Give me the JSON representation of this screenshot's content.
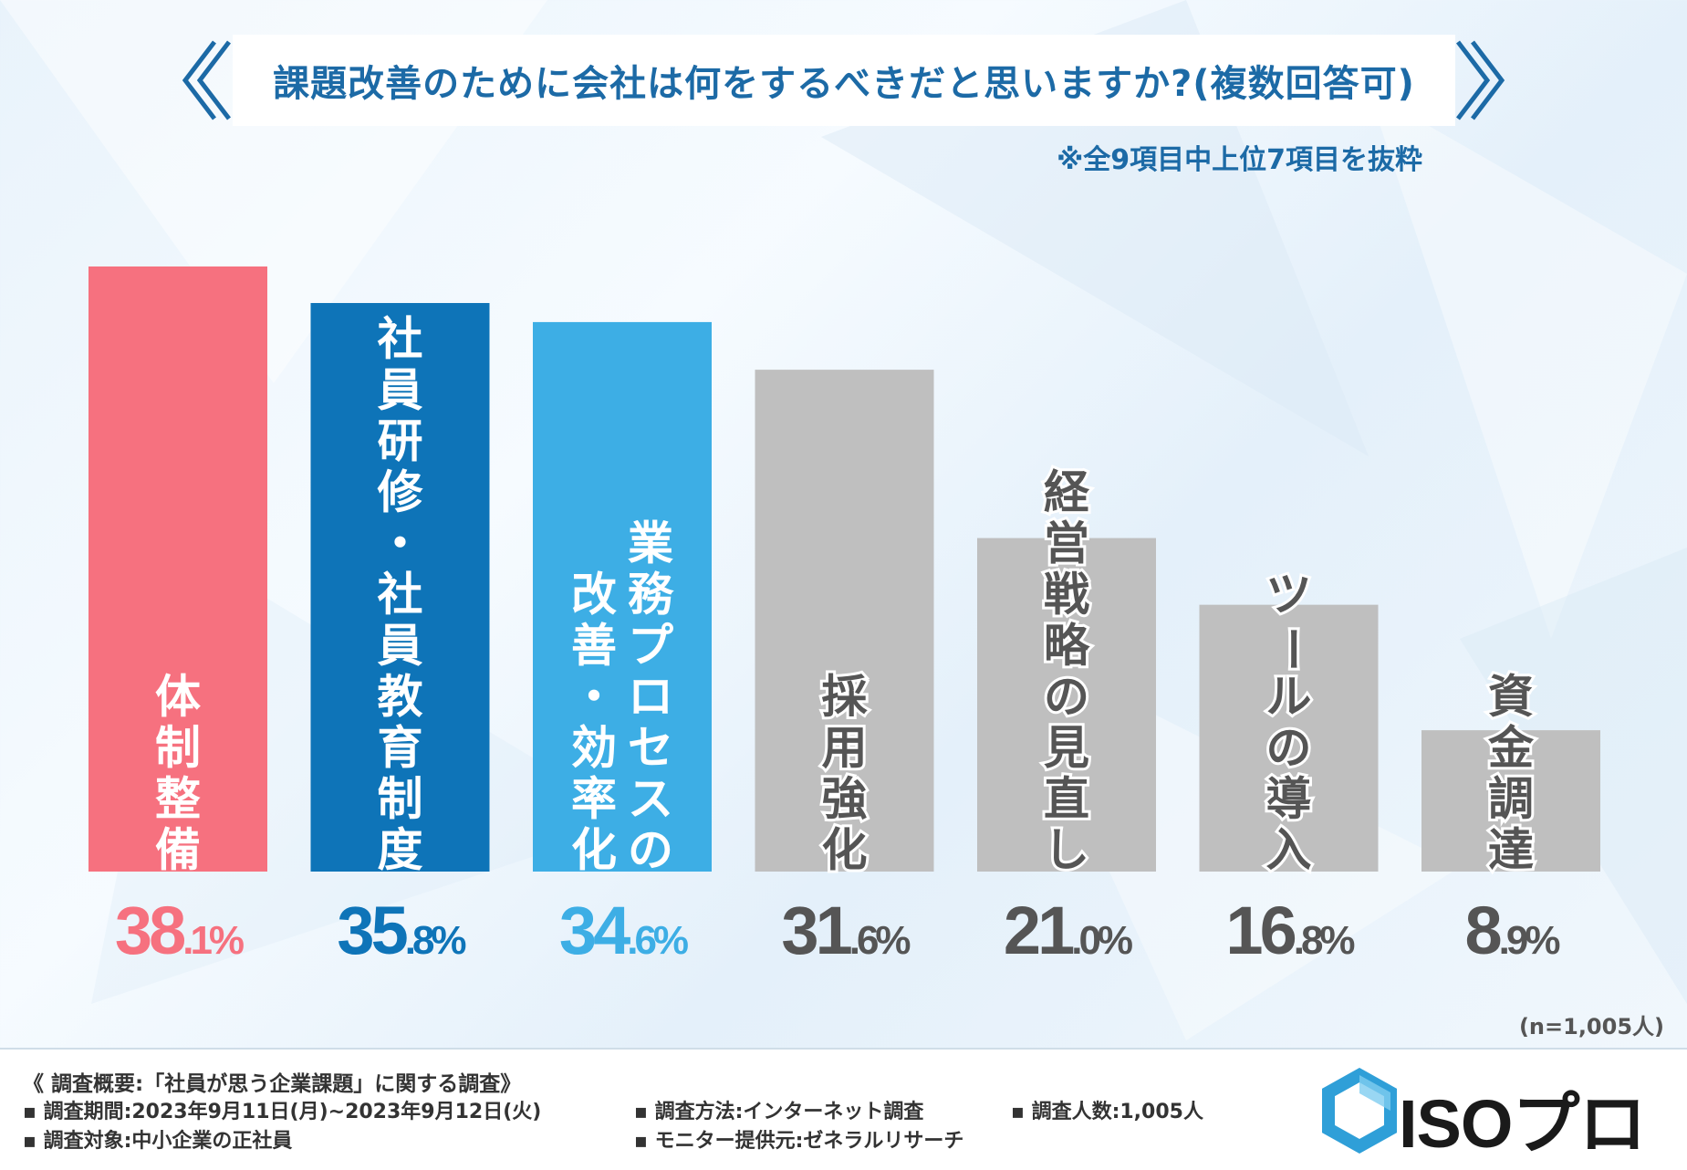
{
  "title": "課題改善のために会社は何をするべきだと思いますか?(複数回答可)",
  "note": "※全9項目中上位7項目を抜粋",
  "chart_data": {
    "type": "bar",
    "title": "課題改善のために会社は何をするべきだと思いますか?(複数回答可)",
    "categories": [
      "体制整備",
      "社員研修・社員教育制度",
      "業務プロセスの改善・効率化",
      "採用強化",
      "経営戦略の見直し",
      "ツールの導入",
      "資金調達"
    ],
    "label_lines": [
      [
        "体制整備"
      ],
      [
        "社員研修・社員教育制度"
      ],
      [
        "業務プロセスの",
        "改善・効率化"
      ],
      [
        "採用強化"
      ],
      [
        "経営戦略の見直し"
      ],
      [
        "ツールの導入"
      ],
      [
        "資金調達"
      ]
    ],
    "values": [
      38.1,
      35.8,
      34.6,
      31.6,
      21.0,
      16.8,
      8.9
    ],
    "value_labels": [
      "38.1%",
      "35.8%",
      "34.6%",
      "31.6%",
      "21.0%",
      "16.8%",
      "8.9%"
    ],
    "unit": "%",
    "colors": [
      "#f6717f",
      "#0e74b8",
      "#3daee5",
      "#bfbfbf",
      "#bfbfbf",
      "#bfbfbf",
      "#bfbfbf"
    ],
    "pct_colors": [
      "#f6717f",
      "#0e74b8",
      "#3daee5",
      "#555555",
      "#555555",
      "#555555",
      "#555555"
    ],
    "ylim": [
      0,
      38.1
    ],
    "xlabel": "",
    "ylabel": ""
  },
  "sample": "(n=1,005人)",
  "footer": {
    "overview": "《 調査概要:「社員が思う企業課題」に関する調査》",
    "period": "▪ 調査期間:2023年9月11日(月)~2023年9月12日(火)",
    "target": "▪ 調査対象:中小企業の正社員",
    "method": "▪ 調査方法:インターネット調査",
    "provider": "▪ モニター提供元:ゼネラルリサーチ",
    "count": "▪ 調査人数:1,005人"
  },
  "logo": {
    "text": "ISOプロ",
    "color": "#2f9fd8"
  }
}
